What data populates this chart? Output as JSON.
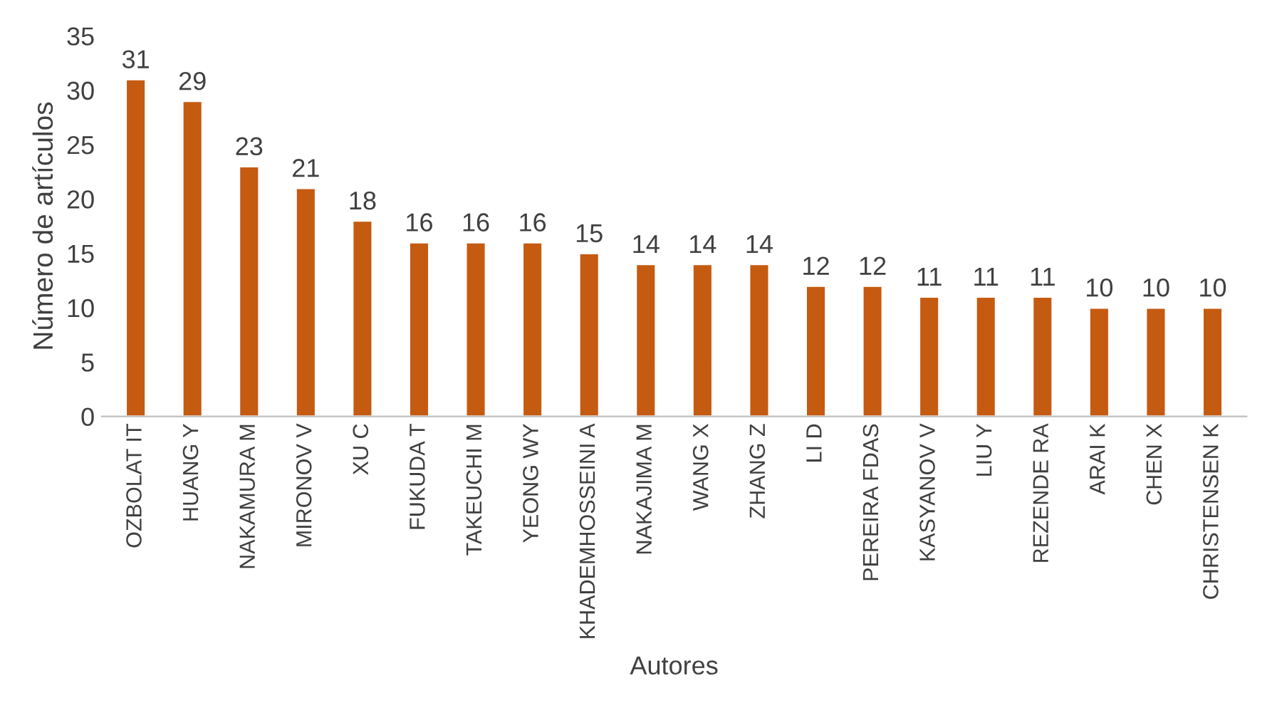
{
  "chart_data": {
    "type": "bar",
    "xlabel": "Autores",
    "ylabel": "Número de artículos",
    "categories": [
      "OZBOLAT IT",
      "HUANG Y",
      "NAKAMURA M",
      "MIRONOV V",
      "XU C",
      "FUKUDA T",
      "TAKEUCHI M",
      "YEONG WY",
      "KHADEMHOSSEINI A",
      "NAKAJIMA M",
      "WANG X",
      "ZHANG Z",
      "LI D",
      "PEREIRA FDAS",
      "KASYANOV V",
      "LIU Y",
      "REZENDE RA",
      "ARAI K",
      "CHEN X",
      "CHRISTENSEN K"
    ],
    "values": [
      31,
      29,
      23,
      21,
      18,
      16,
      16,
      16,
      15,
      14,
      14,
      14,
      12,
      12,
      11,
      11,
      11,
      10,
      10,
      10
    ],
    "color": "#c55a11",
    "ylim": [
      0,
      35
    ],
    "yticks": [
      0,
      5,
      10,
      15,
      20,
      25,
      30,
      35
    ],
    "grid": false,
    "data_labels": true
  }
}
